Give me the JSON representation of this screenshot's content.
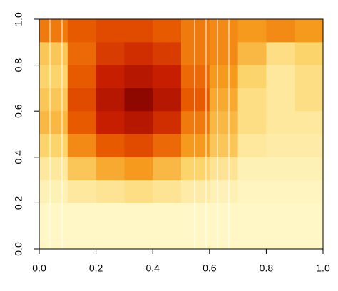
{
  "chart_data": {
    "type": "heatmap",
    "xlim": [
      0,
      1
    ],
    "ylim": [
      0,
      1
    ],
    "xticks": [
      {
        "value": 0,
        "label": "0.0"
      },
      0.2,
      0.4,
      0.6,
      0.8,
      {
        "value": 1,
        "label": "1.0"
      }
    ],
    "yticks": [
      {
        "value": 0,
        "label": "0.0"
      },
      0.2,
      0.4,
      0.6,
      0.8,
      {
        "value": 1,
        "label": "1.0"
      }
    ],
    "zlim": [
      0,
      1
    ],
    "colorscale": [
      "#7a0000",
      "#c81e00",
      "#e85a00",
      "#f59a1c",
      "#fcd46c",
      "#fffbcf"
    ],
    "z": [
      [
        0.5,
        0.4,
        0.35,
        0.35,
        0.4,
        0.5,
        0.55,
        0.6,
        0.55,
        0.6
      ],
      [
        0.75,
        0.45,
        0.3,
        0.25,
        0.3,
        0.5,
        0.55,
        0.7,
        0.85,
        0.8
      ],
      [
        0.8,
        0.4,
        0.2,
        0.15,
        0.2,
        0.45,
        0.6,
        0.8,
        0.9,
        0.85
      ],
      [
        0.75,
        0.35,
        0.15,
        0.05,
        0.15,
        0.4,
        0.65,
        0.85,
        0.9,
        0.85
      ],
      [
        0.7,
        0.4,
        0.2,
        0.15,
        0.25,
        0.5,
        0.7,
        0.85,
        0.9,
        0.9
      ],
      [
        0.8,
        0.55,
        0.4,
        0.35,
        0.45,
        0.6,
        0.75,
        0.9,
        0.92,
        0.92
      ],
      [
        0.9,
        0.75,
        0.65,
        0.6,
        0.7,
        0.8,
        0.88,
        0.95,
        0.95,
        0.95
      ],
      [
        0.95,
        0.9,
        0.88,
        0.85,
        0.88,
        0.92,
        0.95,
        0.97,
        0.97,
        0.97
      ],
      [
        0.98,
        0.98,
        0.98,
        0.98,
        0.98,
        0.98,
        0.98,
        0.98,
        0.98,
        0.98
      ],
      [
        0.98,
        0.98,
        0.98,
        0.98,
        0.98,
        0.98,
        0.98,
        0.98,
        0.98,
        0.98
      ]
    ]
  }
}
